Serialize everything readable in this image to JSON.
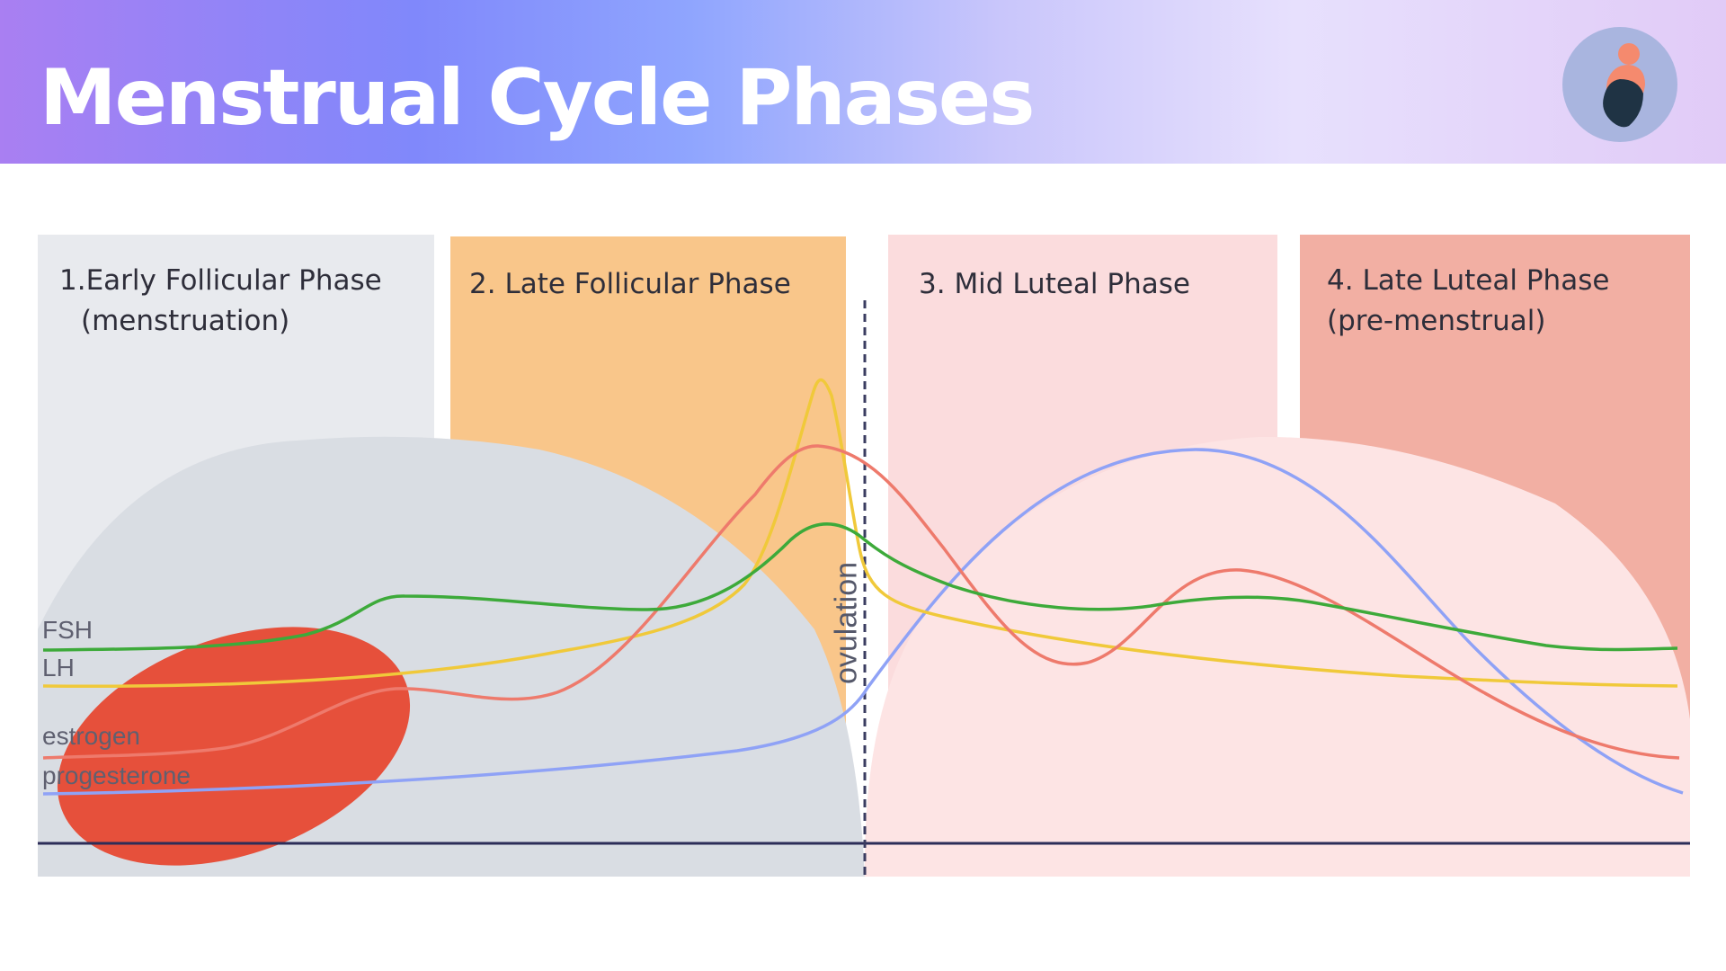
{
  "header": {
    "title": "Menstrual Cycle Phases",
    "avatar_icon": "person-avatar-icon"
  },
  "phases": [
    {
      "number": "1.",
      "line1": "Early Follicular Phase",
      "line2": "(menstruation)",
      "color": "#e8eaee"
    },
    {
      "number": "2.",
      "line1": "Late Follicular Phase",
      "line2": "",
      "color": "#f9c68a"
    },
    {
      "number": "3.",
      "line1": "Mid Luteal  Phase",
      "line2": "",
      "color": "#fbdcdd"
    },
    {
      "number": "4.",
      "line1": "Late Luteal Phase",
      "line2": "(pre-menstrual)",
      "color": "#f2afa3"
    }
  ],
  "hormones": {
    "fsh": {
      "label": "FSH",
      "color": "#3daa3a"
    },
    "lh": {
      "label": "LH",
      "color": "#f0c93a"
    },
    "estrogen": {
      "label": "estrogen",
      "color": "#ee7a6c"
    },
    "progesterone": {
      "label": "progesterone",
      "color": "#8fa2f6"
    }
  },
  "ovulation_label": "ovulation",
  "colors": {
    "left_dome": "#d9dde3",
    "right_dome": "#fde4e4",
    "menstruation_blob": "#e6503b",
    "baseline": "#2c2d58",
    "ovulation_line": "#3a3c60"
  }
}
